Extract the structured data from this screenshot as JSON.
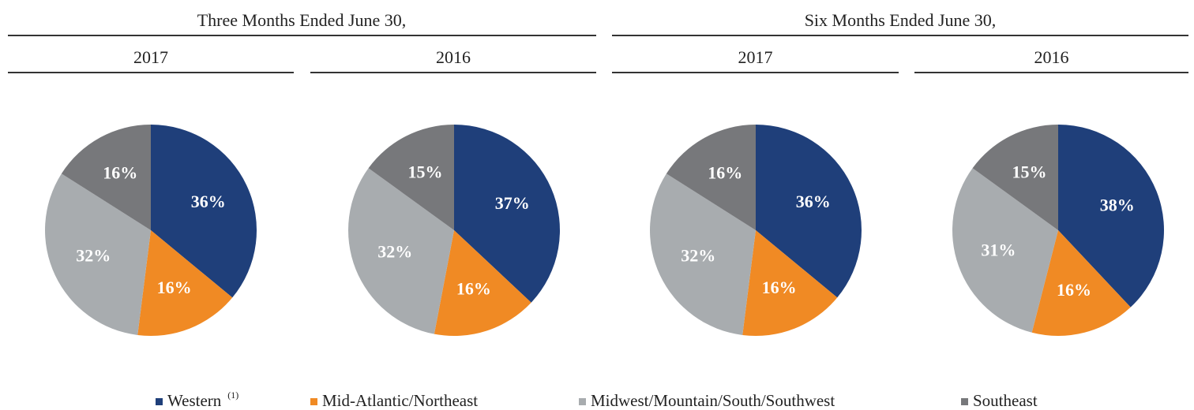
{
  "headers": [
    "Three Months Ended June 30,",
    "Six Months Ended June 30,"
  ],
  "legend": {
    "categories": [
      "Western",
      "Mid-Atlantic/Northeast",
      "Midwest/Mountain/South/Southwest",
      "Southeast"
    ],
    "colors": [
      "#1f3f7a",
      "#f08a24",
      "#a8acaf",
      "#77787b"
    ],
    "footnote": "(1)"
  },
  "chart_data": [
    {
      "type": "pie",
      "title": "2017",
      "values": [
        36,
        16,
        32,
        16
      ],
      "value_labels": [
        "36%",
        "16%",
        "32%",
        "16%"
      ]
    },
    {
      "type": "pie",
      "title": "2016",
      "values": [
        37,
        16,
        32,
        15
      ],
      "value_labels": [
        "37%",
        "16%",
        "32%",
        "15%"
      ]
    },
    {
      "type": "pie",
      "title": "2017",
      "values": [
        36,
        16,
        32,
        16
      ],
      "value_labels": [
        "36%",
        "16%",
        "32%",
        "16%"
      ]
    },
    {
      "type": "pie",
      "title": "2016",
      "values": [
        38,
        16,
        31,
        15
      ],
      "value_labels": [
        "38%",
        "16%",
        "31%",
        "15%"
      ]
    }
  ]
}
